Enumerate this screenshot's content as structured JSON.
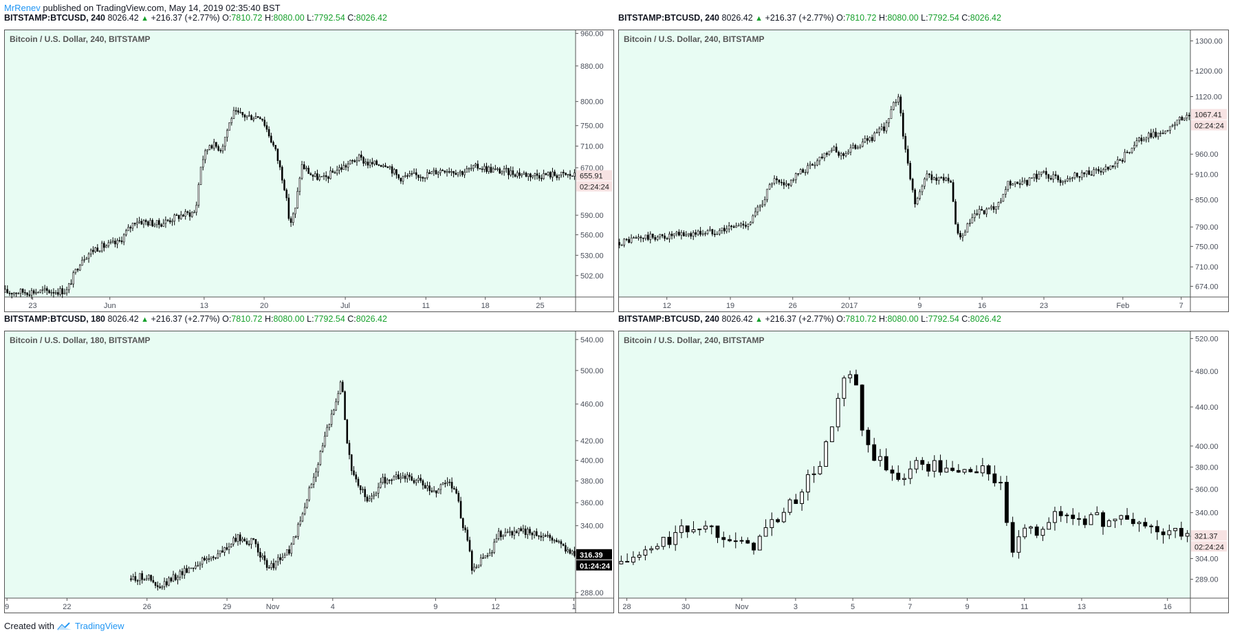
{
  "header": {
    "author": "MrRenev",
    "published_text": "published on TradingView.com, May 14, 2019 02:35:40 BST"
  },
  "footer": {
    "created_with": "Created with",
    "brand": "TradingView"
  },
  "colors": {
    "background": "#e8fcf3",
    "candle": "#000000",
    "grid_text": "#4a4f5a",
    "up": "#17a02c",
    "link": "#2196f3"
  },
  "panels": [
    {
      "info": {
        "symbol": "BITSTAMP:BTCUSD, 240",
        "last": "8026.42",
        "change": "+216.37 (+2.77%)",
        "o_label": "O:",
        "o": "7810.72",
        "h_label": "H:",
        "h": "8080.00",
        "l_label": "L:",
        "l": "7792.54",
        "c_label": "C:",
        "c": "8026.42"
      },
      "legend": "Bitcoin / U.S. Dollar, 240, BITSTAMP",
      "price_badge": "655.91",
      "timer_badge": "02:24:24"
    },
    {
      "info": {
        "symbol": "BITSTAMP:BTCUSD, 240",
        "last": "8026.42",
        "change": "+216.37 (+2.77%)",
        "o_label": "O:",
        "o": "7810.72",
        "h_label": "H:",
        "h": "8080.00",
        "l_label": "L:",
        "l": "7792.54",
        "c_label": "C:",
        "c": "8026.42"
      },
      "legend": "Bitcoin / U.S. Dollar, 240, BITSTAMP",
      "price_badge": "1067.41",
      "timer_badge": "02:24:24"
    },
    {
      "info": {
        "symbol": "BITSTAMP:BTCUSD, 180",
        "last": "8026.42",
        "change": "+216.37 (+2.77%)",
        "o_label": "O:",
        "o": "7810.72",
        "h_label": "H:",
        "h": "8080.00",
        "l_label": "L:",
        "l": "7792.54",
        "c_label": "C:",
        "c": "8026.42"
      },
      "legend": "Bitcoin / U.S. Dollar, 180, BITSTAMP",
      "price_badge": "316.39",
      "timer_badge": "01:24:24"
    },
    {
      "info": {
        "symbol": "BITSTAMP:BTCUSD, 240",
        "last": "8026.42",
        "change": "+216.37 (+2.77%)",
        "o_label": "O:",
        "o": "7810.72",
        "h_label": "H:",
        "h": "8080.00",
        "l_label": "L:",
        "l": "7792.54",
        "c_label": "C:",
        "c": "8026.42"
      },
      "legend": "Bitcoin / U.S. Dollar, 240, BITSTAMP",
      "price_badge": "321.37",
      "timer_badge": "02:24:24"
    }
  ],
  "chart_data": [
    {
      "type": "candlestick",
      "title": "Bitcoin / U.S. Dollar, 240, BITSTAMP",
      "y_scale": "log",
      "ylim": [
        474,
        970
      ],
      "y_ticks": [
        502,
        530,
        560,
        590,
        670,
        710,
        750,
        800,
        880,
        960
      ],
      "y_tick_labels": [
        "502.00",
        "530.00",
        "560.00",
        "590.00",
        "670.00",
        "710.00",
        "750.00",
        "800.00",
        "880.00",
        "960.00"
      ],
      "x_ticks": [
        "23",
        "Jun",
        "13",
        "20",
        "Jul",
        "11",
        "18",
        "25"
      ],
      "x_tick_positions": [
        0.05,
        0.185,
        0.35,
        0.455,
        0.597,
        0.738,
        0.842,
        0.938
      ],
      "last_price": 655.91,
      "path": [
        [
          0.0,
          480
        ],
        [
          0.11,
          482
        ],
        [
          0.135,
          525
        ],
        [
          0.16,
          540
        ],
        [
          0.2,
          548
        ],
        [
          0.23,
          582
        ],
        [
          0.27,
          576
        ],
        [
          0.31,
          590
        ],
        [
          0.335,
          595
        ],
        [
          0.345,
          680
        ],
        [
          0.36,
          715
        ],
        [
          0.38,
          705
        ],
        [
          0.4,
          775
        ],
        [
          0.43,
          768
        ],
        [
          0.45,
          770
        ],
        [
          0.475,
          700
        ],
        [
          0.49,
          640
        ],
        [
          0.5,
          575
        ],
        [
          0.51,
          600
        ],
        [
          0.52,
          675
        ],
        [
          0.54,
          655
        ],
        [
          0.56,
          650
        ],
        [
          0.58,
          665
        ],
        [
          0.6,
          675
        ],
        [
          0.62,
          688
        ],
        [
          0.64,
          676
        ],
        [
          0.67,
          678
        ],
        [
          0.69,
          652
        ],
        [
          0.71,
          655
        ],
        [
          0.74,
          658
        ],
        [
          0.77,
          668
        ],
        [
          0.8,
          662
        ],
        [
          0.83,
          672
        ],
        [
          0.86,
          665
        ],
        [
          0.9,
          660
        ],
        [
          0.93,
          657
        ],
        [
          0.96,
          658
        ],
        [
          1.0,
          656
        ]
      ]
    },
    {
      "type": "candlestick",
      "title": "Bitcoin / U.S. Dollar, 240, BITSTAMP",
      "y_scale": "log",
      "ylim": [
        655,
        1340
      ],
      "y_ticks": [
        674,
        710,
        750,
        790,
        850,
        910,
        960,
        1120,
        1200,
        1300
      ],
      "y_tick_labels": [
        "674.00",
        "710.00",
        "750.00",
        "790.00",
        "850.00",
        "910.00",
        "960.00",
        "1120.00",
        "1200.00",
        "1300.00"
      ],
      "x_ticks": [
        "12",
        "19",
        "26",
        "2017",
        "9",
        "16",
        "23",
        "Feb",
        "7"
      ],
      "x_tick_positions": [
        0.085,
        0.196,
        0.305,
        0.404,
        0.527,
        0.636,
        0.744,
        0.882,
        0.984
      ],
      "last_price": 1067.41,
      "path": [
        [
          0.0,
          758
        ],
        [
          0.04,
          768
        ],
        [
          0.08,
          770
        ],
        [
          0.12,
          775
        ],
        [
          0.16,
          780
        ],
        [
          0.2,
          790
        ],
        [
          0.23,
          800
        ],
        [
          0.25,
          840
        ],
        [
          0.27,
          895
        ],
        [
          0.29,
          880
        ],
        [
          0.31,
          905
        ],
        [
          0.34,
          935
        ],
        [
          0.37,
          975
        ],
        [
          0.39,
          958
        ],
        [
          0.42,
          985
        ],
        [
          0.45,
          1010
        ],
        [
          0.47,
          1040
        ],
        [
          0.48,
          1090
        ],
        [
          0.49,
          1125
        ],
        [
          0.5,
          985
        ],
        [
          0.51,
          900
        ],
        [
          0.52,
          840
        ],
        [
          0.54,
          910
        ],
        [
          0.56,
          895
        ],
        [
          0.57,
          905
        ],
        [
          0.58,
          895
        ],
        [
          0.59,
          790
        ],
        [
          0.6,
          760
        ],
        [
          0.61,
          790
        ],
        [
          0.62,
          810
        ],
        [
          0.63,
          820
        ],
        [
          0.65,
          825
        ],
        [
          0.67,
          840
        ],
        [
          0.68,
          890
        ],
        [
          0.7,
          880
        ],
        [
          0.72,
          895
        ],
        [
          0.74,
          915
        ],
        [
          0.77,
          895
        ],
        [
          0.8,
          910
        ],
        [
          0.83,
          915
        ],
        [
          0.86,
          922
        ],
        [
          0.88,
          945
        ],
        [
          0.9,
          985
        ],
        [
          0.93,
          1010
        ],
        [
          0.96,
          1020
        ],
        [
          0.98,
          1050
        ],
        [
          1.0,
          1067
        ]
      ]
    },
    {
      "type": "candlestick",
      "title": "Bitcoin / U.S. Dollar, 180, BITSTAMP",
      "y_scale": "log",
      "ylim": [
        284,
        552
      ],
      "y_ticks": [
        288,
        340,
        360,
        380,
        400,
        420,
        460,
        500,
        540
      ],
      "y_tick_labels": [
        "288.00",
        "340.00",
        "360.00",
        "380.00",
        "400.00",
        "420.00",
        "460.00",
        "500.00",
        "540.00"
      ],
      "x_ticks": [
        "9",
        "22",
        "26",
        "29",
        "Nov",
        "4",
        "9",
        "12",
        "1"
      ],
      "x_tick_positions": [
        0.005,
        0.11,
        0.25,
        0.39,
        0.47,
        0.575,
        0.755,
        0.86,
        0.997
      ],
      "last_price": 316.39,
      "path": [
        [
          0.22,
          298
        ],
        [
          0.25,
          300
        ],
        [
          0.27,
          290
        ],
        [
          0.3,
          300
        ],
        [
          0.34,
          310
        ],
        [
          0.38,
          318
        ],
        [
          0.41,
          330
        ],
        [
          0.44,
          325
        ],
        [
          0.46,
          305
        ],
        [
          0.48,
          312
        ],
        [
          0.5,
          320
        ],
        [
          0.52,
          345
        ],
        [
          0.55,
          400
        ],
        [
          0.57,
          440
        ],
        [
          0.59,
          490
        ],
        [
          0.6,
          420
        ],
        [
          0.61,
          385
        ],
        [
          0.62,
          375
        ],
        [
          0.64,
          360
        ],
        [
          0.66,
          380
        ],
        [
          0.7,
          385
        ],
        [
          0.73,
          378
        ],
        [
          0.75,
          368
        ],
        [
          0.77,
          380
        ],
        [
          0.79,
          375
        ],
        [
          0.8,
          345
        ],
        [
          0.81,
          330
        ],
        [
          0.82,
          302
        ],
        [
          0.84,
          315
        ],
        [
          0.85,
          315
        ],
        [
          0.86,
          332
        ],
        [
          0.88,
          335
        ],
        [
          0.9,
          335
        ],
        [
          0.93,
          334
        ],
        [
          0.96,
          330
        ],
        [
          0.98,
          323
        ],
        [
          1.0,
          316
        ]
      ]
    },
    {
      "type": "candlestick",
      "title": "Bitcoin / U.S. Dollar, 240, BITSTAMP",
      "y_scale": "log",
      "ylim": [
        276,
        530
      ],
      "y_ticks": [
        289,
        304,
        321,
        340,
        360,
        380,
        400,
        440,
        480,
        520
      ],
      "y_tick_labels": [
        "289.00",
        "304.00",
        "321.37",
        "340.00",
        "360.00",
        "380.00",
        "400.00",
        "440.00",
        "480.00",
        "520.00"
      ],
      "x_ticks": [
        "28",
        "30",
        "Nov",
        "3",
        "5",
        "7",
        "9",
        "11",
        "13",
        "16"
      ],
      "x_tick_positions": [
        0.015,
        0.118,
        0.216,
        0.31,
        0.41,
        0.51,
        0.61,
        0.71,
        0.81,
        0.96
      ],
      "last_price": 321.37,
      "path": [
        [
          0.0,
          300
        ],
        [
          0.05,
          308
        ],
        [
          0.1,
          322
        ],
        [
          0.14,
          330
        ],
        [
          0.17,
          326
        ],
        [
          0.2,
          322
        ],
        [
          0.21,
          312
        ],
        [
          0.24,
          316
        ],
        [
          0.27,
          332
        ],
        [
          0.3,
          345
        ],
        [
          0.32,
          360
        ],
        [
          0.35,
          380
        ],
        [
          0.37,
          410
        ],
        [
          0.39,
          460
        ],
        [
          0.41,
          480
        ],
        [
          0.42,
          440
        ],
        [
          0.43,
          400
        ],
        [
          0.45,
          390
        ],
        [
          0.47,
          375
        ],
        [
          0.49,
          372
        ],
        [
          0.52,
          382
        ],
        [
          0.55,
          382
        ],
        [
          0.58,
          375
        ],
        [
          0.61,
          378
        ],
        [
          0.65,
          376
        ],
        [
          0.67,
          360
        ],
        [
          0.68,
          325
        ],
        [
          0.69,
          310
        ],
        [
          0.71,
          322
        ],
        [
          0.73,
          325
        ],
        [
          0.75,
          335
        ],
        [
          0.78,
          338
        ],
        [
          0.81,
          336
        ],
        [
          0.84,
          334
        ],
        [
          0.88,
          334
        ],
        [
          0.91,
          332
        ],
        [
          0.94,
          325
        ],
        [
          0.97,
          323
        ],
        [
          1.0,
          321
        ]
      ]
    }
  ]
}
